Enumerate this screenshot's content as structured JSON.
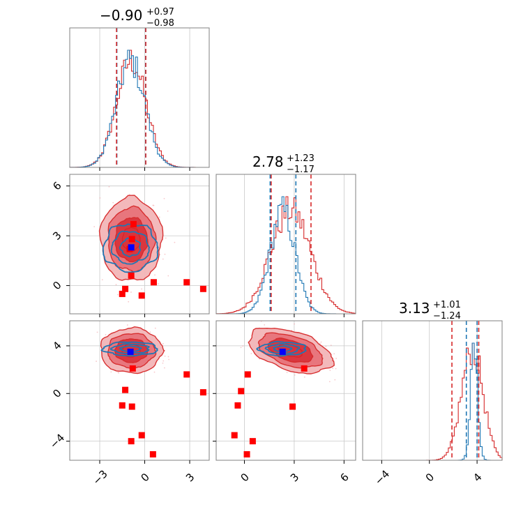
{
  "colors": {
    "blue": "#1f77b4",
    "red": "#d62728",
    "red_fill_outer": "#f3b6b8",
    "red_fill_mid": "#e8737a",
    "red_fill_inner": "#d9343c",
    "marker_red": "#ff0000",
    "marker_blue": "#0000ff",
    "grid": "#c8c8c8",
    "frame": "#808080"
  },
  "chart_data": {
    "type": "corner",
    "grid": true,
    "titles": [
      {
        "median": "−0.90",
        "plus": "+0.97",
        "minus": "−0.98"
      },
      {
        "median": "2.78",
        "plus": "+1.23",
        "minus": "−1.17"
      },
      {
        "median": "3.13",
        "plus": "+1.01",
        "minus": "−1.24"
      }
    ],
    "params": [
      {
        "range": [
          -5,
          4.3
        ],
        "ticks": [
          -3,
          0,
          3
        ],
        "tick_labels": [
          "−3",
          "0",
          "3"
        ]
      },
      {
        "range": [
          -1.7,
          6.7
        ],
        "ticks": [
          0,
          3,
          6
        ],
        "tick_labels": [
          "0",
          "3",
          "6"
        ]
      },
      {
        "range": [
          -5.6,
          6.1
        ],
        "ticks": [
          -4,
          0,
          4
        ],
        "tick_labels": [
          "−4",
          "0",
          "4"
        ]
      }
    ],
    "marginals": [
      {
        "blue": {
          "mean": -0.95,
          "sd": 0.95,
          "quantiles": [
            -1.86,
            0.06
          ]
        },
        "red": {
          "mean": -0.9,
          "sd": 0.98,
          "quantiles": [
            -1.88,
            0.07
          ]
        }
      },
      {
        "blue": {
          "mean": 2.3,
          "sd": 0.75,
          "quantiles": [
            1.55,
            3.1
          ]
        },
        "red": {
          "mean": 2.78,
          "sd": 1.2,
          "quantiles": [
            1.61,
            4.01
          ]
        }
      },
      {
        "blue": {
          "mean": 3.75,
          "sd": 0.3,
          "quantiles": [
            3.1,
            4.0
          ]
        },
        "red": {
          "mean": 3.6,
          "sd": 0.9,
          "quantiles": [
            1.89,
            4.14
          ]
        }
      }
    ],
    "joint": [
      {
        "x_param": 0,
        "y_param": 1,
        "red": {
          "cx": -0.9,
          "cy": 2.78,
          "sx": 0.98,
          "sy": 1.2,
          "rho": 0.0
        },
        "blue": {
          "cx": -0.95,
          "cy": 2.3,
          "sx": 0.95,
          "sy": 0.75,
          "rho": 0.0
        },
        "red_points": [
          [
            -0.75,
            3.7
          ],
          [
            -0.85,
            2.8
          ],
          [
            -1.0,
            2.2
          ],
          [
            -0.9,
            0.6
          ],
          [
            -1.3,
            -0.2
          ],
          [
            -1.5,
            -0.5
          ],
          [
            -0.2,
            -0.6
          ],
          [
            0.6,
            0.2
          ],
          [
            2.8,
            0.2
          ],
          [
            3.9,
            -0.2
          ]
        ],
        "blue_points": [
          [
            -0.9,
            2.3
          ]
        ]
      },
      {
        "x_param": 0,
        "y_param": 2,
        "red": {
          "cx": -0.9,
          "cy": 3.6,
          "sx": 0.98,
          "sy": 0.9,
          "rho": 0.0
        },
        "blue": {
          "cx": -0.95,
          "cy": 3.75,
          "sx": 0.95,
          "sy": 0.3,
          "rho": 0.0
        },
        "red_points": [
          [
            -0.8,
            2.1
          ],
          [
            -1.3,
            0.3
          ],
          [
            -1.5,
            -1.0
          ],
          [
            -0.85,
            -1.1
          ],
          [
            2.8,
            1.6
          ],
          [
            3.9,
            0.1
          ],
          [
            -0.2,
            -3.5
          ],
          [
            -0.9,
            -4.0
          ],
          [
            0.55,
            -5.1
          ]
        ],
        "blue_points": [
          [
            -0.95,
            3.5
          ]
        ]
      },
      {
        "x_param": 1,
        "y_param": 2,
        "red": {
          "cx": 2.78,
          "cy": 3.6,
          "sx": 1.2,
          "sy": 0.9,
          "rho": -0.45
        },
        "blue": {
          "cx": 2.3,
          "cy": 3.75,
          "sx": 0.75,
          "sy": 0.3,
          "rho": 0.0
        },
        "red_points": [
          [
            3.6,
            2.1
          ],
          [
            0.2,
            1.6
          ],
          [
            -0.2,
            0.2
          ],
          [
            -0.4,
            -1.0
          ],
          [
            2.9,
            -1.1
          ],
          [
            -0.6,
            -3.5
          ],
          [
            0.5,
            -4.0
          ],
          [
            0.15,
            -5.1
          ]
        ],
        "blue_points": [
          [
            2.3,
            3.5
          ]
        ]
      }
    ]
  }
}
